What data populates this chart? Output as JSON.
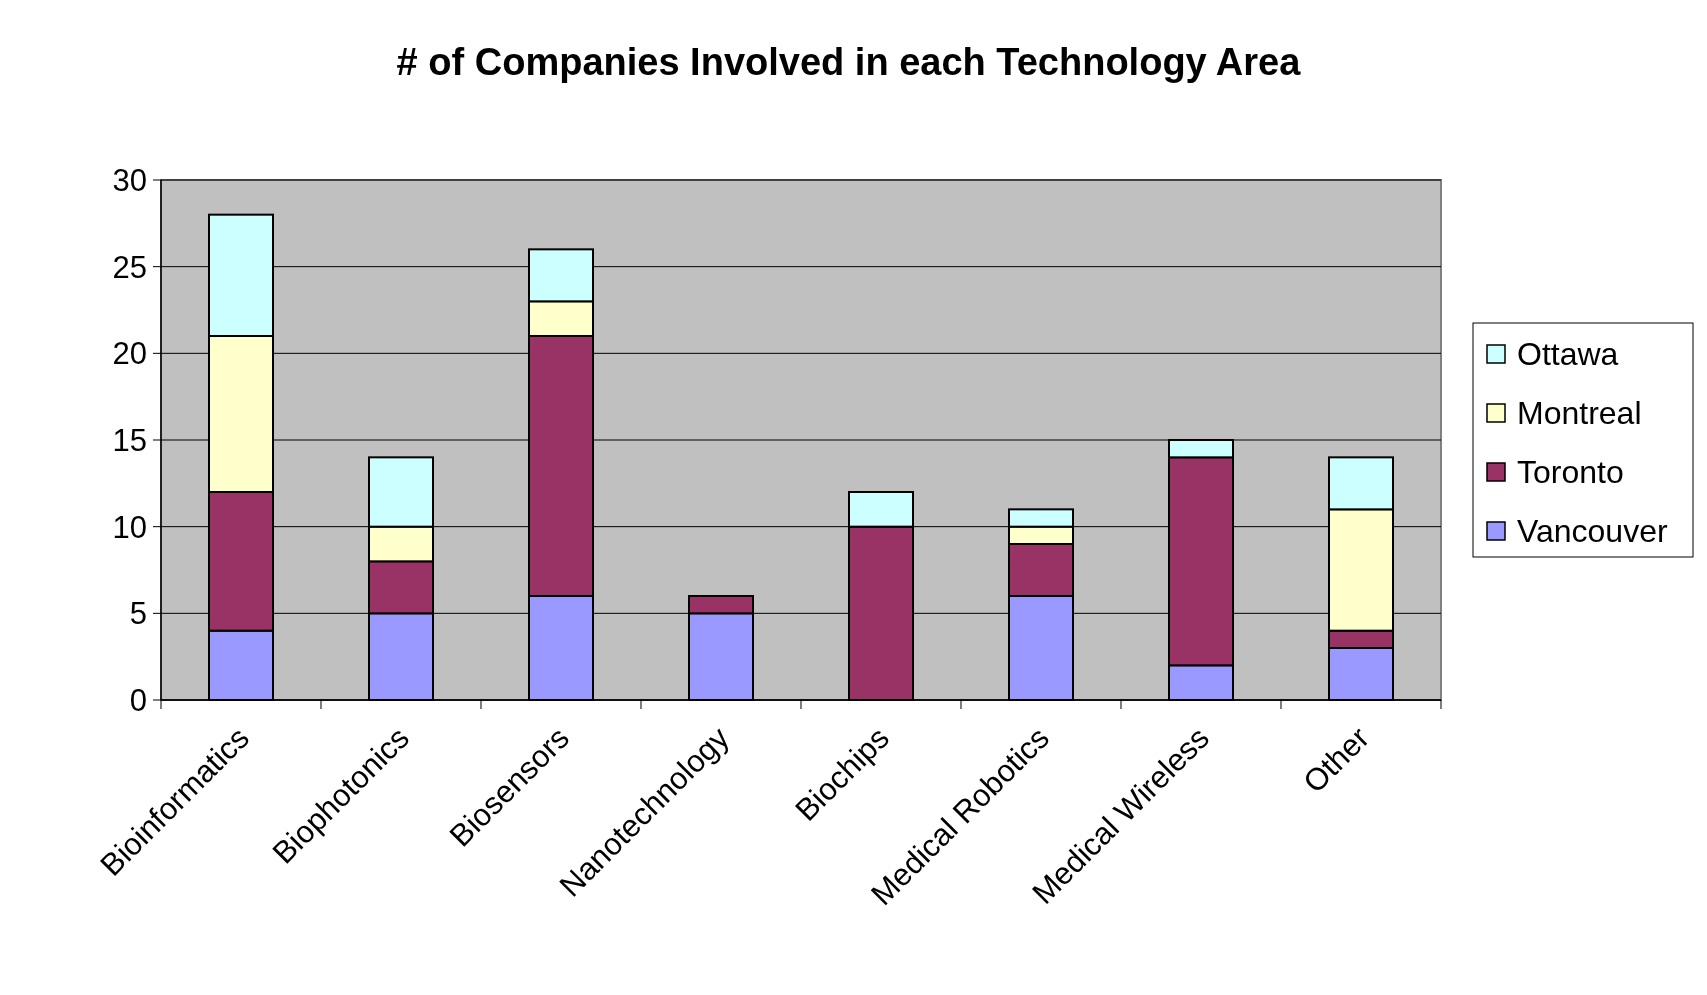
{
  "chart_data": {
    "type": "bar",
    "title": "# of Companies Involved in each Technology Area",
    "stacked": true,
    "categories": [
      "Bioinformatics",
      "Biophotonics",
      "Biosensors",
      "Nanotechnology",
      "Biochips",
      "Medical Robotics",
      "Medical Wireless",
      "Other"
    ],
    "series": [
      {
        "name": "Vancouver",
        "color": "#9999ff",
        "values": [
          4,
          5,
          6,
          5,
          0,
          6,
          2,
          3
        ]
      },
      {
        "name": "Toronto",
        "color": "#993366",
        "values": [
          8,
          3,
          15,
          1,
          10,
          3,
          12,
          1
        ]
      },
      {
        "name": "Montreal",
        "color": "#ffffcc",
        "values": [
          9,
          2,
          2,
          0,
          0,
          1,
          0,
          7
        ]
      },
      {
        "name": "Ottawa",
        "color": "#ccffff",
        "values": [
          7,
          4,
          3,
          0,
          2,
          1,
          1,
          3
        ]
      }
    ],
    "ylim": [
      0,
      30
    ],
    "yticks": [
      0,
      5,
      10,
      15,
      20,
      25,
      30
    ],
    "grid": "y",
    "legend": "right"
  }
}
